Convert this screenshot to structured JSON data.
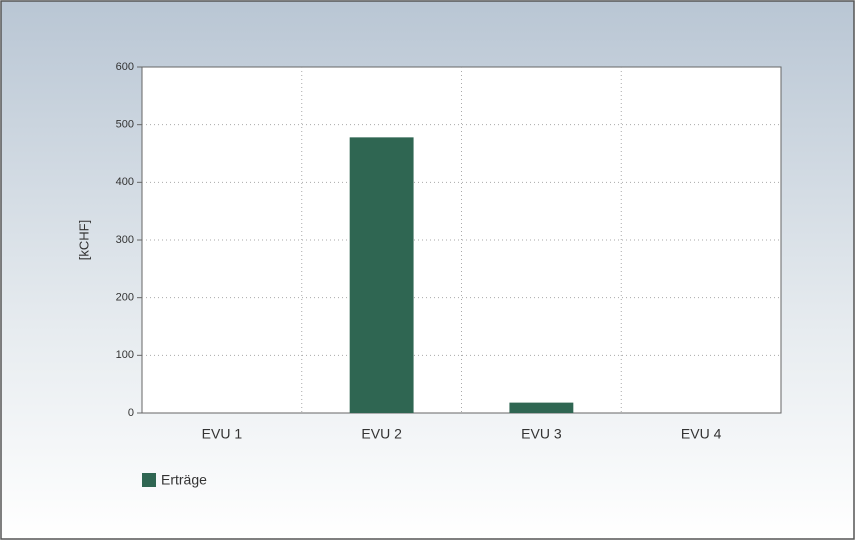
{
  "chart_data": {
    "type": "bar",
    "ylabel": "[kCHF]",
    "categories": [
      "EVU 1",
      "EVU 2",
      "EVU 3",
      "EVU 4"
    ],
    "series": [
      {
        "name": "Erträge",
        "color": "#2f6652",
        "values": [
          0,
          478,
          18,
          0
        ]
      }
    ],
    "ylim": [
      0,
      600
    ],
    "yticks": [
      0,
      100,
      200,
      300,
      400,
      500,
      600
    ],
    "grid": true
  }
}
